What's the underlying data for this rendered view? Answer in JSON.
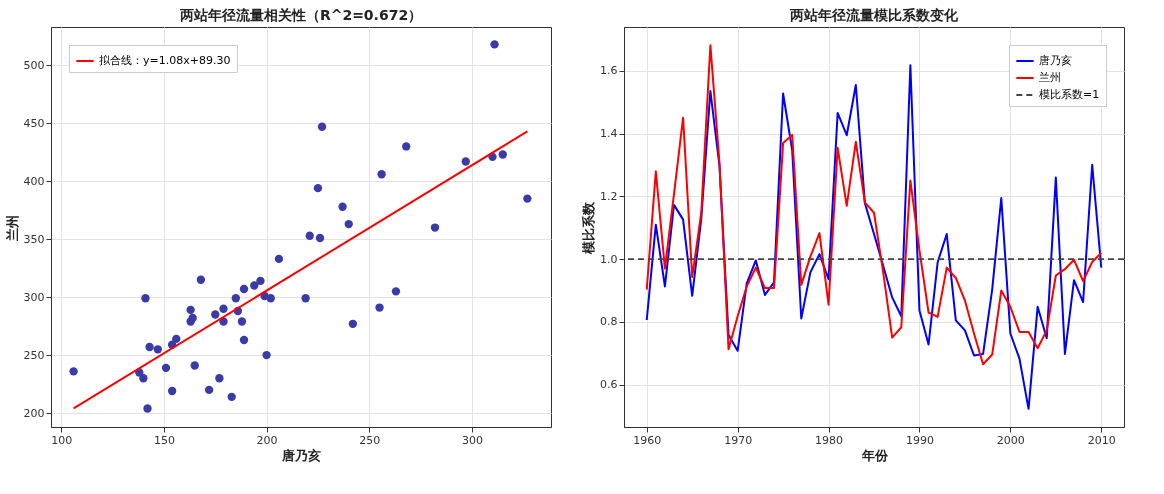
{
  "chart_data": [
    {
      "type": "scatter",
      "title": "两站年径流量相关性（R^2=0.672）",
      "xlabel": "唐乃亥",
      "ylabel": "兰州",
      "xlim": [
        95,
        338.5
      ],
      "ylim": [
        188,
        533
      ],
      "xticks": [
        100,
        150,
        200,
        250,
        300
      ],
      "yticks": [
        200,
        250,
        300,
        350,
        400,
        450,
        500
      ],
      "grid": true,
      "legend": "top left",
      "marker": "circle",
      "series": [
        {
          "type": "scatter",
          "color": "#3b3ba8",
          "x": [
            106,
            311,
            227,
            268,
            297,
            310,
            315,
            256,
            225,
            327,
            237,
            240,
            282,
            221,
            226,
            206,
            168,
            197,
            194,
            189,
            185,
            199,
            202,
            219,
            141,
            263,
            163,
            164,
            163,
            175,
            179,
            179,
            186,
            188,
            255,
            242,
            189,
            156,
            154,
            143,
            147,
            200,
            151,
            165,
            138,
            140,
            177,
            154,
            172,
            183,
            142
          ],
          "values": [
            236,
            518,
            447,
            430,
            417,
            421,
            423,
            406,
            394,
            385,
            378,
            363,
            360,
            353,
            351,
            333,
            315,
            314,
            310,
            307,
            299,
            301,
            299,
            299,
            299,
            305,
            289,
            282,
            279,
            285,
            290,
            279,
            288,
            279,
            291,
            277,
            263,
            264,
            259,
            257,
            255,
            250,
            239,
            241,
            235,
            230,
            230,
            219,
            220,
            214,
            204
          ]
        },
        {
          "type": "line",
          "name": "拟合线：y=1.08x+89.30",
          "color": "#ff0000",
          "line_style": "solid",
          "marker": "none",
          "x": [
            106,
            327
          ],
          "values": [
            204,
            443
          ]
        }
      ]
    },
    {
      "type": "line",
      "title": "两站年径流量模比系数变化",
      "xlabel": "年份",
      "ylabel": "模比系数",
      "xlim": [
        1957.5,
        2012.5
      ],
      "ylim": [
        0.465,
        1.74
      ],
      "xticks": [
        1960,
        1970,
        1980,
        1990,
        2000,
        2010
      ],
      "yticks": [
        0.6,
        0.8,
        {
          "value": 1.0,
          "label": "1.0"
        },
        1.2,
        1.4,
        1.6
      ],
      "grid": true,
      "legend": "top right",
      "marker": "none",
      "line_style": "solid",
      "x": [
        1960,
        1961,
        1962,
        1963,
        1964,
        1965,
        1966,
        1967,
        1968,
        1969,
        1970,
        1971,
        1972,
        1973,
        1974,
        1975,
        1976,
        1977,
        1978,
        1979,
        1980,
        1981,
        1982,
        1983,
        1984,
        1985,
        1986,
        1987,
        1988,
        1989,
        1990,
        1991,
        1992,
        1993,
        1994,
        1995,
        1996,
        1997,
        1998,
        1999,
        2000,
        2001,
        2002,
        2003,
        2004,
        2005,
        2006,
        2007,
        2008,
        2009,
        2010
      ],
      "series": [
        {
          "name": "唐乃亥",
          "color": "#0000ff",
          "values": [
            0.806,
            1.11,
            0.913,
            1.173,
            1.126,
            0.883,
            1.128,
            1.536,
            1.298,
            0.758,
            0.708,
            0.923,
            0.996,
            0.886,
            0.926,
            1.528,
            1.348,
            0.811,
            0.958,
            1.016,
            0.936,
            1.466,
            1.395,
            1.555,
            1.178,
            1.08,
            0.98,
            0.878,
            0.818,
            1.618,
            0.836,
            0.728,
            0.99,
            1.08,
            0.805,
            0.773,
            0.693,
            0.698,
            0.903,
            1.195,
            0.763,
            0.683,
            0.523,
            0.848,
            0.748,
            1.26,
            0.698,
            0.933,
            0.863,
            1.301,
            0.973
          ]
        },
        {
          "name": "兰州",
          "color": "#ff0000",
          "values": [
            0.903,
            1.28,
            0.97,
            1.208,
            1.451,
            0.943,
            1.148,
            1.682,
            1.308,
            0.713,
            0.818,
            0.913,
            0.973,
            0.908,
            0.908,
            1.37,
            1.396,
            0.918,
            1.008,
            1.083,
            0.855,
            1.355,
            1.17,
            1.374,
            1.18,
            1.148,
            0.96,
            0.75,
            0.783,
            1.251,
            1.028,
            0.83,
            0.816,
            0.973,
            0.94,
            0.868,
            0.763,
            0.665,
            0.696,
            0.9,
            0.848,
            0.768,
            0.768,
            0.716,
            0.773,
            0.948,
            0.968,
            0.998,
            0.93,
            0.991,
            1.02
          ]
        }
      ],
      "ref_lines": [
        {
          "axis": "y",
          "value": 1.0,
          "label": "模比系数=1",
          "color": "#444444",
          "line_style": "dashed"
        }
      ]
    }
  ]
}
